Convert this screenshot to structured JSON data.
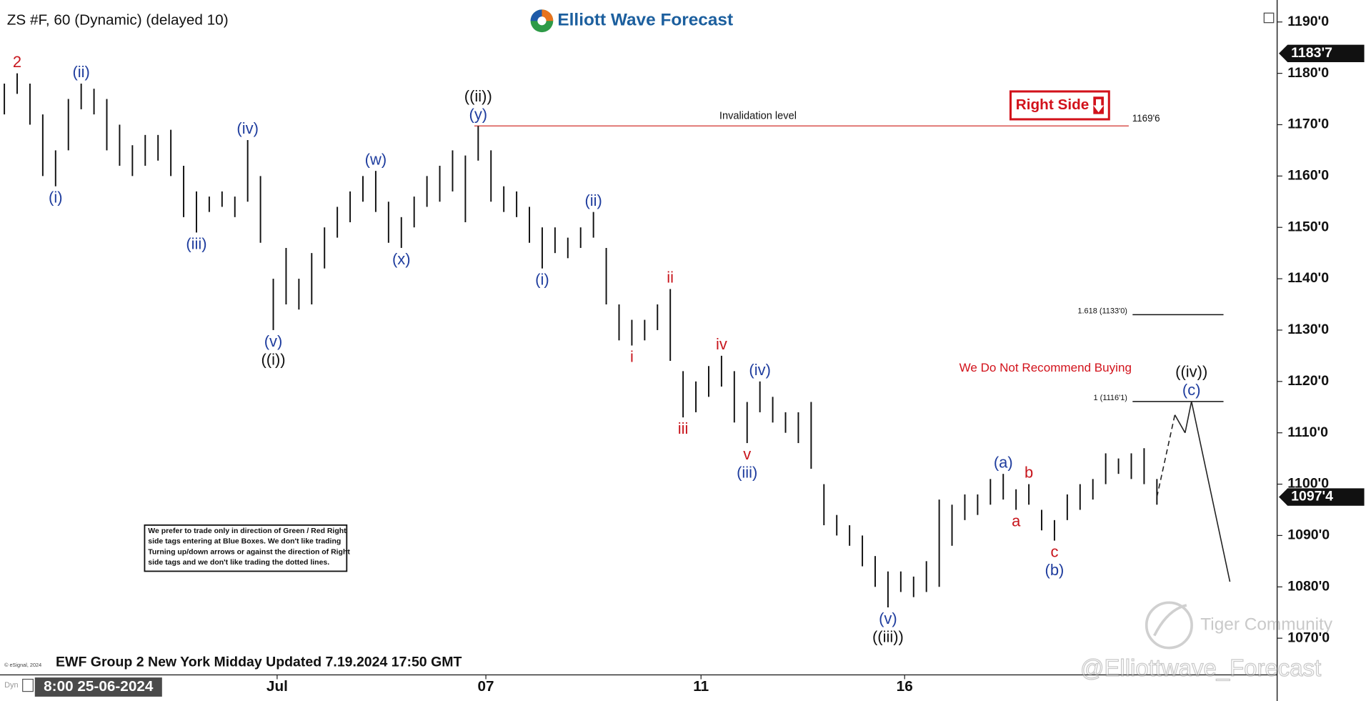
{
  "chart_data": {
    "type": "ohlc",
    "title": "ZS #F, 60 (Dynamic) (delayed 10)",
    "brand": "Elliott Wave Forecast",
    "footer": "EWF Group 2 New York Midday Updated 7.19.2024 17:50 GMT",
    "copyright": "© eSignal, 2024",
    "mode_tag": "Dyn",
    "start_label": "8:00 25-06-2024",
    "right_side_tag": "Right Side",
    "warning": "We Do Not Recommend Buying",
    "invalidation_text": "Invalidation level",
    "disclaimer": [
      "We prefer to trade only in direction of Green / Red Right",
      "side tags entering at Blue Boxes. We don't like trading",
      "Turning up/down arrows or against the direction of Right",
      "side tags and we don't like trading the dotted lines."
    ],
    "watermarks": [
      "Tiger Community",
      "@Elliottwave_Forecast"
    ],
    "color": "#111111",
    "low": [
      1172,
      1176,
      1170,
      1160,
      1158,
      1165,
      1173,
      1172,
      1165,
      1162,
      1160,
      1162,
      1163,
      1160,
      1152,
      1149,
      1153,
      1154,
      1152,
      1155,
      1147,
      1130,
      1135,
      1134,
      1135,
      1142,
      1148,
      1151,
      1155,
      1153,
      1147,
      1146,
      1150,
      1154,
      1155,
      1157,
      1151,
      1163,
      1155,
      1153,
      1152,
      1147,
      1142,
      1145,
      1144,
      1146,
      1148,
      1135,
      1128,
      1127,
      1128,
      1130,
      1124,
      1113,
      1114,
      1117,
      1119,
      1112,
      1108,
      1114,
      1112,
      1110,
      1108,
      1103,
      1092,
      1090,
      1088,
      1084,
      1080,
      1076,
      1079,
      1078,
      1079,
      1080,
      1088,
      1093,
      1094,
      1096,
      1097,
      1095,
      1096,
      1091,
      1089,
      1093,
      1095,
      1097,
      1100,
      1102,
      1101,
      1100,
      1096
    ],
    "high": [
      1178,
      1180,
      1178,
      1172,
      1165,
      1175,
      1178,
      1177,
      1175,
      1170,
      1166,
      1168,
      1168,
      1169,
      1162,
      1157,
      1156,
      1157,
      1156,
      1167,
      1160,
      1140,
      1146,
      1140,
      1145,
      1150,
      1154,
      1157,
      1160,
      1161,
      1155,
      1152,
      1156,
      1160,
      1162,
      1165,
      1164,
      1169.75,
      1165,
      1158,
      1157,
      1154,
      1150,
      1150,
      1148,
      1150,
      1153,
      1146,
      1135,
      1132,
      1132,
      1135,
      1138,
      1122,
      1120,
      1123,
      1125,
      1122,
      1116,
      1120,
      1117,
      1114,
      1114,
      1116,
      1100,
      1094,
      1092,
      1090,
      1086,
      1083,
      1083,
      1082,
      1085,
      1097,
      1096,
      1098,
      1098,
      1101,
      1102,
      1099,
      1100,
      1095,
      1093,
      1098,
      1100,
      1101,
      1106,
      1105,
      1106,
      1107,
      1101
    ],
    "xlim": [
      -0.34,
      99.32
    ],
    "xticks": [
      {
        "value": 21.3,
        "label": "Jul"
      },
      {
        "value": 37.6,
        "label": "07"
      },
      {
        "value": 54.4,
        "label": "11"
      },
      {
        "value": 70.3,
        "label": "16"
      }
    ],
    "ylim": [
      1063.2,
      1193.6
    ],
    "yticks": [
      {
        "value": 1070,
        "label": "1070'0"
      },
      {
        "value": 1080,
        "label": "1080'0"
      },
      {
        "value": 1090,
        "label": "1090'0"
      },
      {
        "value": 1100,
        "label": "1100'0"
      },
      {
        "value": 1110,
        "label": "1110'0"
      },
      {
        "value": 1120,
        "label": "1120'0"
      },
      {
        "value": 1130,
        "label": "1130'0"
      },
      {
        "value": 1140,
        "label": "1140'0"
      },
      {
        "value": 1150,
        "label": "1150'0"
      },
      {
        "value": 1160,
        "label": "1160'0"
      },
      {
        "value": 1170,
        "label": "1170'0"
      },
      {
        "value": 1180,
        "label": "1180'0"
      },
      {
        "value": 1190,
        "label": "1190'0"
      }
    ],
    "price_tags": [
      {
        "value": 1183.875,
        "label": "1183'7"
      },
      {
        "value": 1097.5,
        "label": "1097'4"
      }
    ],
    "levels": [
      {
        "value": 1169.75,
        "label": "1169'6",
        "from": 36.7,
        "to": 87.8,
        "color": "#d9534f",
        "label_side": "right"
      },
      {
        "value": 1133,
        "label": "1.618 (1133'0)",
        "from": 88.1,
        "to": 95.2,
        "color": "#111111",
        "label_side": "left"
      },
      {
        "value": 1116.1,
        "label": "1 (1116'1)",
        "from": 88.1,
        "to": 95.2,
        "color": "#111111",
        "label_side": "left"
      }
    ],
    "projection": {
      "x": [
        90,
        91.4,
        92.2,
        92.7,
        95.7
      ],
      "y": [
        1097.5,
        1113.5,
        1110,
        1116.1,
        1081
      ],
      "dashed_segments": 1,
      "color": "#222222"
    },
    "wave_labels": [
      {
        "text": "2",
        "bar": 1,
        "side": "above",
        "color": "#c8161d"
      },
      {
        "text": "(i)",
        "bar": 4,
        "side": "below",
        "color": "#1f3d9e"
      },
      {
        "text": "(ii)",
        "bar": 6,
        "side": "above",
        "color": "#1f3d9e"
      },
      {
        "text": "(iii)",
        "bar": 15,
        "side": "below",
        "color": "#1f3d9e"
      },
      {
        "text": "(iv)",
        "bar": 19,
        "side": "above",
        "color": "#1f3d9e"
      },
      {
        "text": "(v)",
        "bar": 21,
        "side": "below",
        "color": "#1f3d9e"
      },
      {
        "text": "((i))",
        "bar": 21,
        "side": "below",
        "color": "#111111"
      },
      {
        "text": "(w)",
        "bar": 29,
        "side": "above",
        "color": "#1f3d9e"
      },
      {
        "text": "(x)",
        "bar": 31,
        "side": "below",
        "color": "#1f3d9e"
      },
      {
        "text": "(y)",
        "bar": 37,
        "side": "above",
        "color": "#1f3d9e"
      },
      {
        "text": "((ii))",
        "bar": 37,
        "side": "above",
        "color": "#111111"
      },
      {
        "text": "(i)",
        "bar": 42,
        "side": "below",
        "color": "#1f3d9e"
      },
      {
        "text": "(ii)",
        "bar": 46,
        "side": "above",
        "color": "#1f3d9e"
      },
      {
        "text": "i",
        "bar": 49,
        "side": "below",
        "color": "#c8161d"
      },
      {
        "text": "ii",
        "bar": 52,
        "side": "above",
        "color": "#c8161d"
      },
      {
        "text": "iii",
        "bar": 53,
        "side": "below",
        "color": "#c8161d"
      },
      {
        "text": "iv",
        "bar": 56,
        "side": "above",
        "color": "#c8161d"
      },
      {
        "text": "v",
        "bar": 58,
        "side": "below",
        "color": "#c8161d"
      },
      {
        "text": "(iii)",
        "bar": 58,
        "side": "below",
        "color": "#1f3d9e"
      },
      {
        "text": "(iv)",
        "bar": 59,
        "side": "above",
        "color": "#1f3d9e"
      },
      {
        "text": "(v)",
        "bar": 69,
        "side": "below",
        "color": "#1f3d9e"
      },
      {
        "text": "((iii))",
        "bar": 69,
        "side": "below",
        "color": "#111111"
      },
      {
        "text": "(a)",
        "bar": 78,
        "side": "above",
        "color": "#1f3d9e"
      },
      {
        "text": "a",
        "bar": 79,
        "side": "below",
        "color": "#c8161d"
      },
      {
        "text": "b",
        "bar": 80,
        "side": "above",
        "color": "#c8161d"
      },
      {
        "text": "c",
        "bar": 82,
        "side": "below",
        "color": "#c8161d"
      },
      {
        "text": "(b)",
        "bar": 82,
        "side": "below",
        "color": "#1f3d9e"
      },
      {
        "text": "(c)",
        "projection": 3,
        "side": "above",
        "color": "#1f3d9e"
      },
      {
        "text": "((iv))",
        "projection": 3,
        "side": "above",
        "color": "#111111"
      }
    ]
  }
}
